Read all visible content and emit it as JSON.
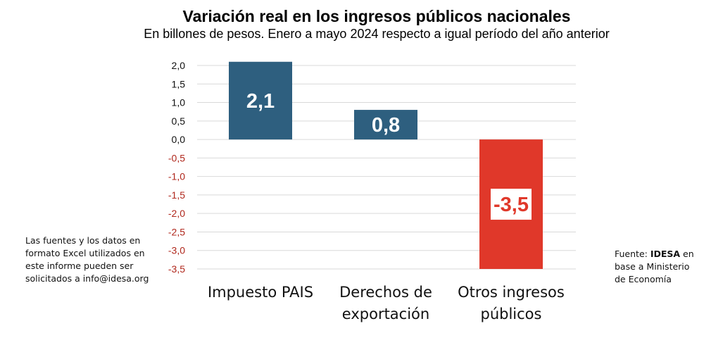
{
  "chart_data": {
    "type": "bar",
    "title": "Variación real en los ingresos públicos nacionales",
    "subtitle": "En billones de pesos. Enero a mayo 2024 respecto a igual período del año anterior",
    "categories": [
      "Impuesto PAIS",
      "Derechos de exportación",
      "Otros ingresos públicos"
    ],
    "category_lines": [
      [
        "Impuesto PAIS"
      ],
      [
        "Derechos de",
        "exportación"
      ],
      [
        "Otros ingresos",
        "públicos"
      ]
    ],
    "values": [
      2.1,
      0.8,
      -3.5
    ],
    "data_labels": [
      "2,1",
      "0,8",
      "-3,5"
    ],
    "yticks": [
      2.0,
      1.5,
      1.0,
      0.5,
      0.0,
      -0.5,
      -1.0,
      -1.5,
      -2.0,
      -2.5,
      -3.0,
      -3.5
    ],
    "ytick_labels": [
      "2,0",
      "1,5",
      "1,0",
      "0,5",
      "0,0",
      "-0,5",
      "-1,0",
      "-1,5",
      "-2,0",
      "-2,5",
      "-3,0",
      "-3,5"
    ],
    "ylim": [
      -3.5,
      2.0
    ],
    "xlabel": "",
    "ylabel": "",
    "grid": true,
    "colors": {
      "positive_bar": "#2e5f7f",
      "negative_bar": "#e0382a",
      "positive_tick": "#111111",
      "negative_tick": "#b0281d",
      "grid": "#d9d9d9"
    }
  },
  "notes": {
    "left_text": "Las fuentes y los datos en formato Excel utilizados en este informe pueden ser solicitados a info@idesa.org",
    "right_prefix": "Fuente: ",
    "right_bold": "IDESA",
    "right_suffix": " en base a Ministerio de Economía"
  }
}
